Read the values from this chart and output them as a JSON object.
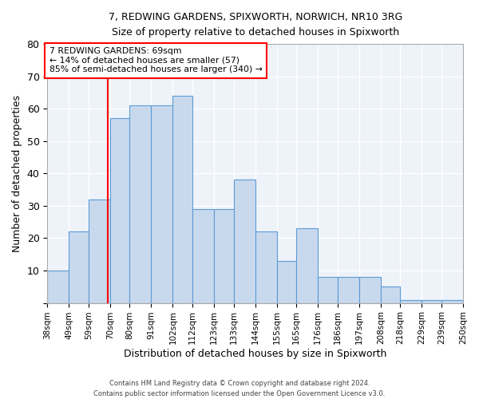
{
  "title_line1": "7, REDWING GARDENS, SPIXWORTH, NORWICH, NR10 3RG",
  "title_line2": "Size of property relative to detached houses in Spixworth",
  "xlabel": "Distribution of detached houses by size in Spixworth",
  "ylabel": "Number of detached properties",
  "bin_labels": [
    "38sqm",
    "49sqm",
    "59sqm",
    "70sqm",
    "80sqm",
    "91sqm",
    "102sqm",
    "112sqm",
    "123sqm",
    "133sqm",
    "144sqm",
    "155sqm",
    "165sqm",
    "176sqm",
    "186sqm",
    "197sqm",
    "208sqm",
    "218sqm",
    "229sqm",
    "239sqm",
    "250sqm"
  ],
  "bin_edges": [
    38,
    49,
    59,
    70,
    80,
    91,
    102,
    112,
    123,
    133,
    144,
    155,
    165,
    176,
    186,
    197,
    208,
    218,
    229,
    239,
    250
  ],
  "bar_heights": [
    10,
    22,
    32,
    57,
    61,
    61,
    64,
    29,
    29,
    38,
    22,
    13,
    23,
    8,
    8,
    8,
    5,
    1,
    1,
    1
  ],
  "bar_color": "#c9d9ed",
  "bar_edge_color": "#5b9bd5",
  "red_line_x": 69,
  "annotation_text": "7 REDWING GARDENS: 69sqm\n← 14% of detached houses are smaller (57)\n85% of semi-detached houses are larger (340) →",
  "annotation_box_color": "white",
  "annotation_box_edge_color": "red",
  "red_line_color": "red",
  "ylim": [
    0,
    80
  ],
  "yticks": [
    0,
    10,
    20,
    30,
    40,
    50,
    60,
    70,
    80
  ],
  "background_color": "#eef2f9",
  "grid_color": "white",
  "footer_line1": "Contains HM Land Registry data © Crown copyright and database right 2024.",
  "footer_line2": "Contains public sector information licensed under the Open Government Licence v3.0."
}
